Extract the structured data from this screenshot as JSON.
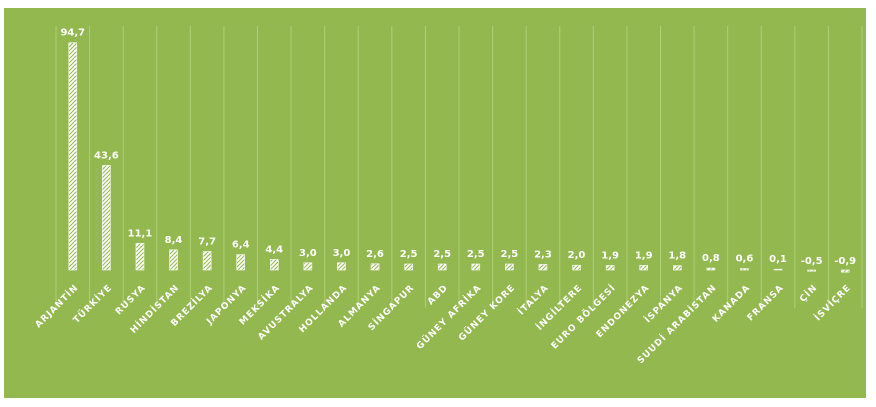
{
  "chart_data": {
    "type": "bar",
    "categories": [
      "ARJANTİN",
      "TÜRKİYE",
      "RUSYA",
      "HİNDİSTAN",
      "BREZİLYA",
      "JAPONYA",
      "MEKSİKA",
      "AVUSTRALYA",
      "HOLLANDA",
      "ALMANYA",
      "SİNGAPUR",
      "ABD",
      "GÜNEY AFRİKA",
      "GÜNEY KORE",
      "İTALYA",
      "İNGİLTERE",
      "EURO BÖLGESİ",
      "ENDONEZYA",
      "İSPANYA",
      "SUUDİ ARABİSTAN",
      "KANADA",
      "FRANSA",
      "ÇİN",
      "İSVİÇRE"
    ],
    "values": [
      94.7,
      43.6,
      11.1,
      8.4,
      7.7,
      6.4,
      4.4,
      3.0,
      3.0,
      2.6,
      2.5,
      2.5,
      2.5,
      2.5,
      2.3,
      2.0,
      1.9,
      1.9,
      1.8,
      0.8,
      0.6,
      0.1,
      -0.5,
      -0.9
    ],
    "data_labels": [
      "94,7",
      "43,6",
      "11,1",
      "8,4",
      "7,7",
      "6,4",
      "4,4",
      "3,0",
      "3,0",
      "2,6",
      "2,5",
      "2,5",
      "2,5",
      "2,5",
      "2,3",
      "2,0",
      "1,9",
      "1,9",
      "1,8",
      "0,8",
      "0,6",
      "0,1",
      "-0,5",
      "-0,9"
    ],
    "title": "",
    "xlabel": "",
    "ylabel": "",
    "ylim": [
      -1,
      100
    ],
    "grid": "vertical",
    "legend": "none",
    "colors": {
      "background": "#93b84f",
      "bar_fill": "#ffffff",
      "bar_hatch": "#93b84f",
      "grid": "#b2cd7d",
      "text": "#ffffff"
    }
  }
}
